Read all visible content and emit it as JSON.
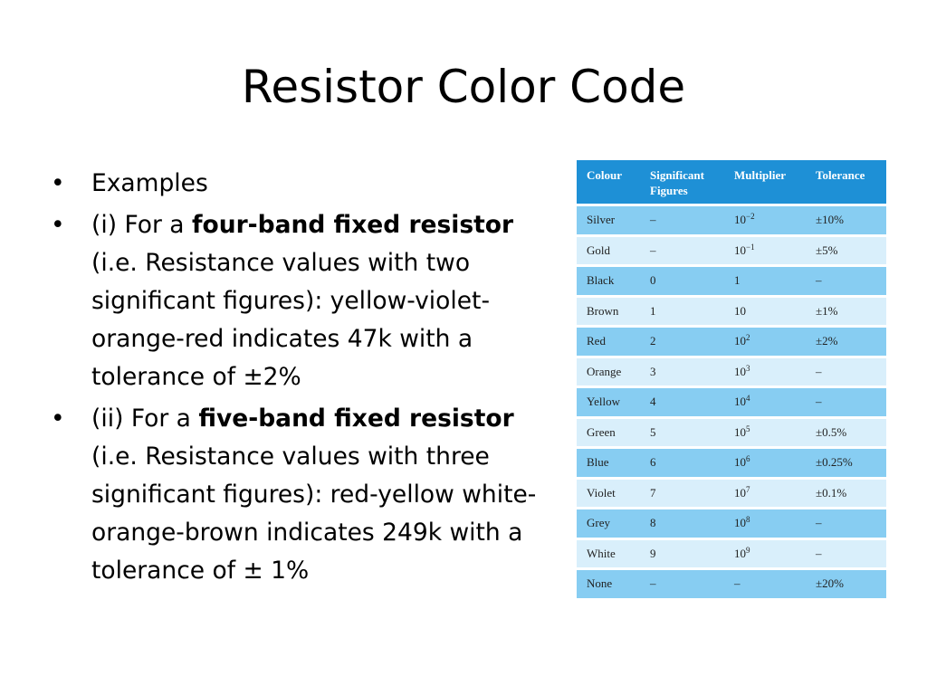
{
  "slide": {
    "title": "Resistor Color Code"
  },
  "bullets": [
    {
      "marker": "•",
      "parts": [
        {
          "text": "Examples",
          "bold": false
        }
      ]
    },
    {
      "marker": "•",
      "parts": [
        {
          "text": "(i) For a ",
          "bold": false
        },
        {
          "text": "four-band fixed resistor",
          "bold": true
        },
        {
          "text": " (i.e. Resistance values with two significant figures): yellow-violet-orange-red indicates 47k with a tolerance of ±2%",
          "bold": false
        }
      ]
    },
    {
      "marker": "•",
      "parts": [
        {
          "text": "(ii) For a ",
          "bold": false
        },
        {
          "text": "five-band fixed resistor",
          "bold": true
        },
        {
          "text": " (i.e. Resistance values with three significant figures): red-yellow white-orange-brown indicates 249k with a tolerance of ± 1%",
          "bold": false
        }
      ]
    }
  ],
  "table": {
    "headers": [
      "Colour",
      "Significant Figures",
      "Multiplier",
      "Tolerance"
    ],
    "rows": [
      {
        "colour": "Silver",
        "sig": "–",
        "mult_base": "10",
        "mult_exp": "−2",
        "tol": "±10%"
      },
      {
        "colour": "Gold",
        "sig": "–",
        "mult_base": "10",
        "mult_exp": "−1",
        "tol": "±5%"
      },
      {
        "colour": "Black",
        "sig": "0",
        "mult_base": "1",
        "mult_exp": "",
        "tol": "–"
      },
      {
        "colour": "Brown",
        "sig": "1",
        "mult_base": "10",
        "mult_exp": "",
        "tol": "±1%"
      },
      {
        "colour": "Red",
        "sig": "2",
        "mult_base": "10",
        "mult_exp": "2",
        "tol": "±2%"
      },
      {
        "colour": "Orange",
        "sig": "3",
        "mult_base": "10",
        "mult_exp": "3",
        "tol": "–"
      },
      {
        "colour": "Yellow",
        "sig": "4",
        "mult_base": "10",
        "mult_exp": "4",
        "tol": "–"
      },
      {
        "colour": "Green",
        "sig": "5",
        "mult_base": "10",
        "mult_exp": "5",
        "tol": "±0.5%"
      },
      {
        "colour": "Blue",
        "sig": "6",
        "mult_base": "10",
        "mult_exp": "6",
        "tol": "±0.25%"
      },
      {
        "colour": "Violet",
        "sig": "7",
        "mult_base": "10",
        "mult_exp": "7",
        "tol": "±0.1%"
      },
      {
        "colour": "Grey",
        "sig": "8",
        "mult_base": "10",
        "mult_exp": "8",
        "tol": "–"
      },
      {
        "colour": "White",
        "sig": "9",
        "mult_base": "10",
        "mult_exp": "9",
        "tol": "–"
      },
      {
        "colour": "None",
        "sig": "–",
        "mult_base": "–",
        "mult_exp": "",
        "tol": "±20%"
      }
    ],
    "colors": {
      "header_bg": "#1e90d6",
      "row_dark": "#87cdf2",
      "row_light": "#d9effb"
    }
  }
}
